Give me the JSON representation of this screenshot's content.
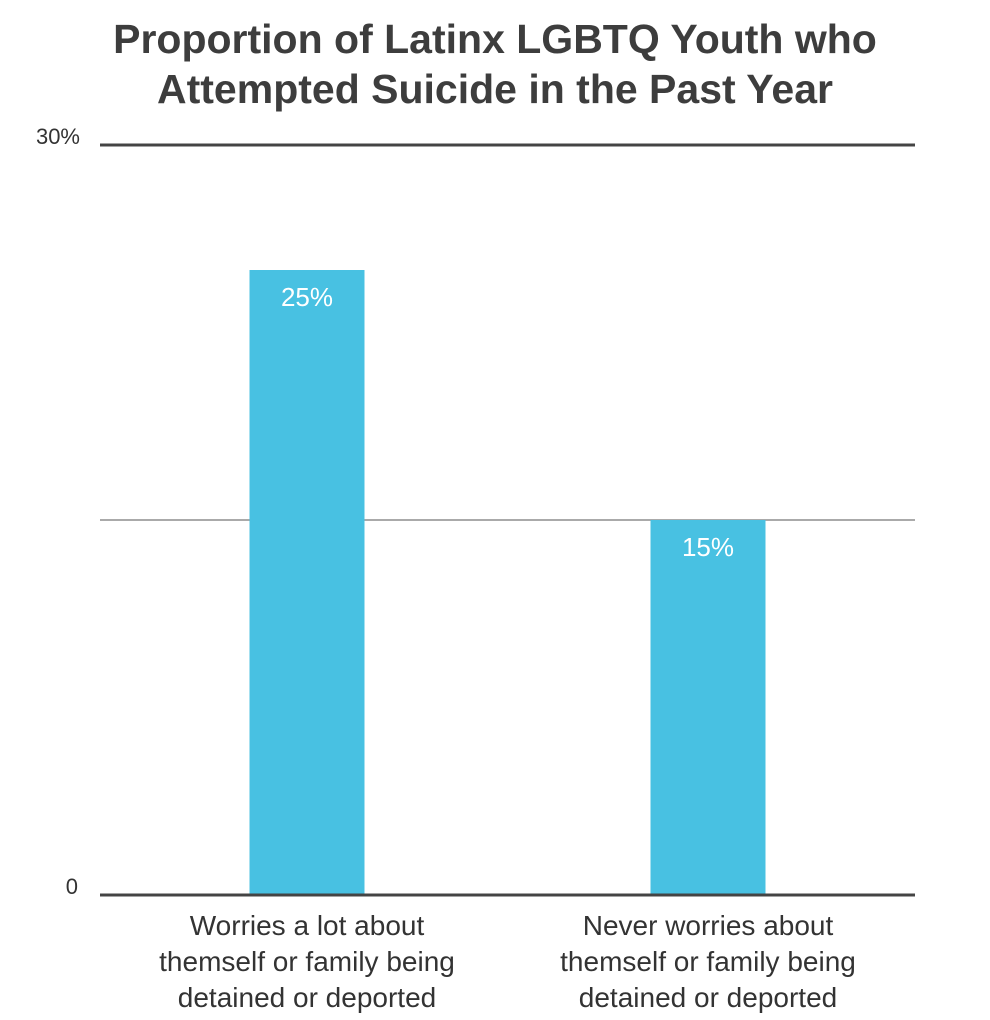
{
  "title_lines": [
    "Proportion of Latinx LGBTQ Youth who",
    "Attempted Suicide in the Past Year"
  ],
  "colors": {
    "bar": "#48c1e2",
    "axis": "#444444",
    "text": "#333333",
    "bar_label": "#ffffff"
  },
  "chart_data": {
    "type": "bar",
    "title": "Proportion of Latinx LGBTQ Youth who Attempted Suicide in the Past Year",
    "categories": [
      "Worries a lot about themself or family being detained or deported",
      "Never worries about themself or family being detained or deported"
    ],
    "category_lines": [
      [
        "Worries a lot about",
        "themself or family being",
        "detained or deported"
      ],
      [
        "Never worries about",
        "themself or family being",
        "detained or deported"
      ]
    ],
    "values": [
      25,
      15
    ],
    "data_labels": [
      "25%",
      "15%"
    ],
    "y_tick_labels": {
      "min": "0",
      "max": "30%"
    },
    "ylim": [
      0,
      30
    ],
    "gridlines": [
      15
    ],
    "xlabel": "",
    "ylabel": "",
    "legend": "none"
  }
}
